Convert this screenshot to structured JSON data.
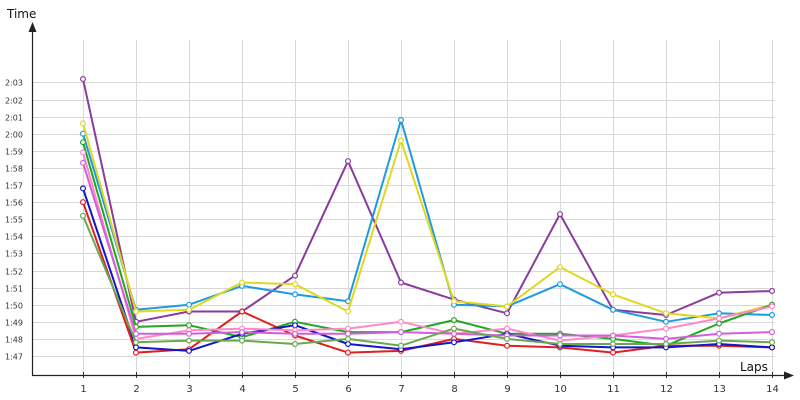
{
  "chart_data": {
    "type": "line",
    "title": "",
    "xlabel": "Laps",
    "ylabel": "Time",
    "x": [
      1,
      2,
      3,
      4,
      5,
      6,
      7,
      8,
      9,
      10,
      11,
      12,
      13,
      14
    ],
    "x_tick_labels": [
      "1",
      "2",
      "3",
      "4",
      "5",
      "6",
      "7",
      "8",
      "9",
      "10",
      "11",
      "12",
      "13",
      "14"
    ],
    "y_tick_labels": [
      "1:47",
      "1:48",
      "1:49",
      "1:50",
      "1:51",
      "1:52",
      "1:53",
      "1:54",
      "1:55",
      "1:56",
      "1:57",
      "1:58",
      "1:59",
      "2:00",
      "2:01",
      "2:02",
      "2:03"
    ],
    "y_unit": "seconds",
    "ylim": [
      106,
      124
    ],
    "grid": true,
    "legend": "none",
    "series": [
      {
        "color": "#8B3A9E",
        "values": [
          123.2,
          109.0,
          109.6,
          109.6,
          111.7,
          118.4,
          111.3,
          110.3,
          109.5,
          115.3,
          109.7,
          109.4,
          110.7,
          110.8
        ]
      },
      {
        "color": "#1E9BE0",
        "values": [
          120.0,
          109.7,
          110.0,
          111.1,
          110.6,
          110.2,
          120.8,
          110.0,
          109.9,
          111.2,
          109.7,
          109.0,
          109.5,
          109.4
        ]
      },
      {
        "color": "#E0D820",
        "values": [
          120.6,
          109.6,
          109.7,
          111.3,
          111.2,
          109.6,
          119.6,
          110.2,
          109.9,
          112.2,
          110.6,
          109.5,
          109.2,
          110.0
        ]
      },
      {
        "color": "#22A722",
        "values": [
          119.5,
          108.7,
          108.8,
          108.1,
          109.0,
          108.4,
          108.4,
          109.1,
          108.3,
          108.3,
          108.0,
          107.6,
          108.9,
          110.0
        ]
      },
      {
        "color": "#E02020",
        "values": [
          116.0,
          107.2,
          107.4,
          109.6,
          108.2,
          107.2,
          107.3,
          108.0,
          107.6,
          107.5,
          107.2,
          107.6,
          107.6,
          107.5
        ]
      },
      {
        "color": "#1414C8",
        "values": [
          116.8,
          107.5,
          107.3,
          108.3,
          108.8,
          107.7,
          107.4,
          107.8,
          108.3,
          107.6,
          107.5,
          107.5,
          107.7,
          107.5
        ]
      },
      {
        "color": "#FF88C8",
        "values": [
          118.9,
          108.0,
          108.5,
          108.6,
          108.5,
          108.6,
          109.0,
          108.3,
          108.6,
          107.9,
          108.2,
          108.6,
          109.2,
          109.9
        ]
      },
      {
        "color": "#D060D8",
        "values": [
          118.3,
          108.3,
          108.3,
          108.4,
          108.3,
          108.3,
          108.4,
          108.3,
          108.2,
          108.2,
          108.2,
          108.0,
          108.3,
          108.4
        ]
      },
      {
        "color": "#6AA84F",
        "values": [
          115.2,
          107.8,
          107.9,
          107.9,
          107.7,
          108.0,
          107.6,
          108.6,
          108.0,
          107.7,
          107.7,
          107.7,
          107.9,
          107.8
        ]
      }
    ]
  }
}
